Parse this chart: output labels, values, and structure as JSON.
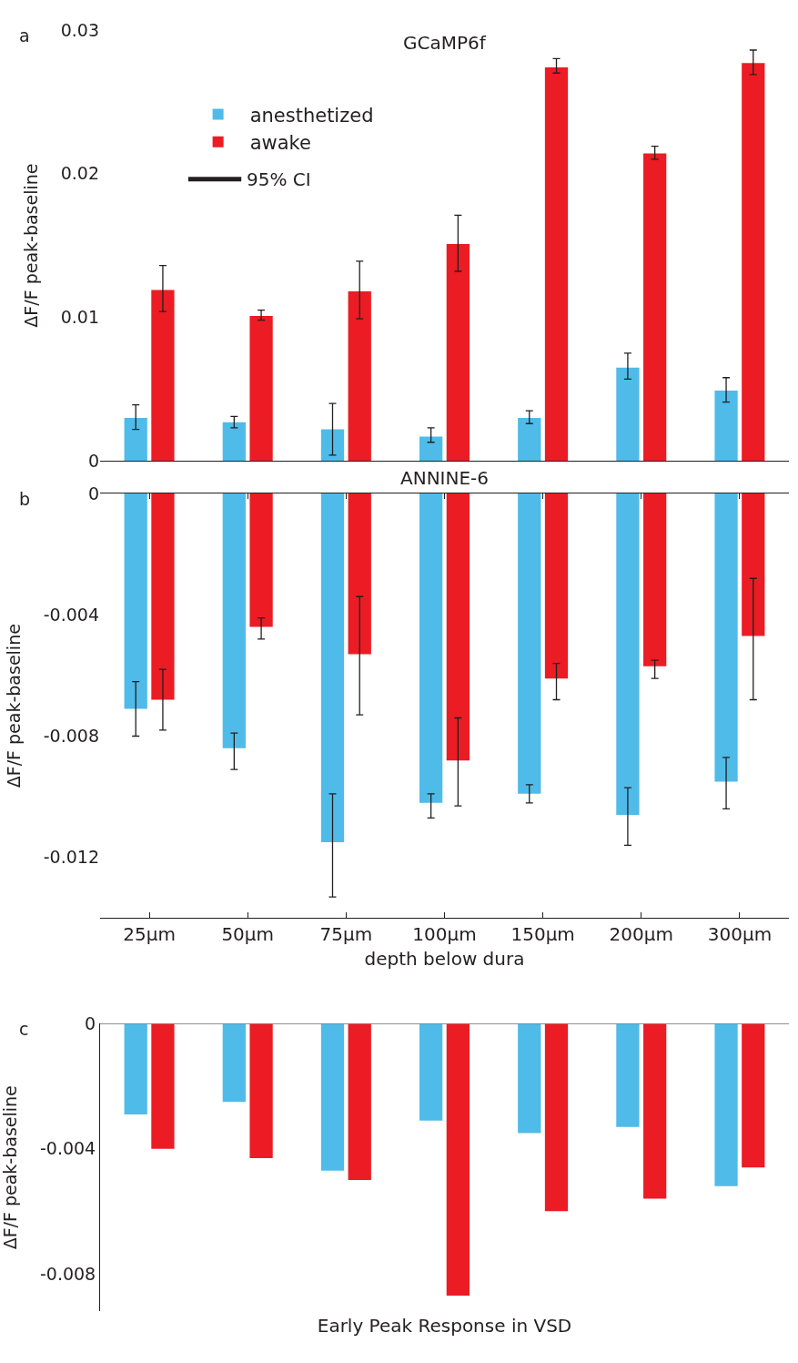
{
  "chart_data": [
    {
      "type": "bar",
      "title": "GCaMP6f",
      "ylabel": "ΔF/F peak-baseline",
      "categories": [
        null,
        null,
        null,
        null,
        null,
        null,
        null
      ],
      "ylim": [
        0,
        0.03
      ],
      "yticks": [
        0,
        0.01,
        0.02,
        0.03
      ],
      "tick_labels": "y",
      "legend": "top left",
      "annotations": [
        "a",
        "95% CI"
      ],
      "series": [
        {
          "name": "anesthetized",
          "color": "#4fbbe9",
          "values": [
            0.003,
            0.0027,
            0.0022,
            0.0017,
            0.003,
            0.0065,
            0.0049
          ],
          "errors": [
            [
              0.0022,
              0.0039
            ],
            [
              0.0023,
              0.0031
            ],
            [
              0.0004,
              0.004
            ],
            [
              0.0013,
              0.0023
            ],
            [
              0.0026,
              0.0035
            ],
            [
              0.0057,
              0.0075
            ],
            [
              0.0041,
              0.0058
            ]
          ]
        },
        {
          "name": "awake",
          "color": "#ec1c24",
          "values": [
            0.0119,
            0.0101,
            0.0118,
            0.0151,
            0.0274,
            0.0214,
            0.0277
          ],
          "errors": [
            [
              0.0104,
              0.0136
            ],
            [
              0.0098,
              0.0105
            ],
            [
              0.0099,
              0.0139
            ],
            [
              0.0132,
              0.0171
            ],
            [
              0.027,
              0.028
            ],
            [
              0.021,
              0.0219
            ],
            [
              0.0269,
              0.0286
            ]
          ]
        }
      ]
    },
    {
      "type": "bar",
      "title": "ANNINE-6",
      "xlabel": "depth below dura",
      "ylabel": "ΔF/F peak-baseline",
      "categories": [
        "25µm",
        "50µm",
        "75µm",
        "100µm",
        "150µm",
        "200µm",
        "300µm"
      ],
      "ylim": [
        -0.014,
        0
      ],
      "yticks": [
        0,
        -0.004,
        -0.008,
        -0.012
      ],
      "annotations": [
        "b"
      ],
      "series": [
        {
          "color": "#4fbbe9",
          "values": [
            -0.0071,
            -0.0084,
            -0.0115,
            -0.0102,
            -0.0099,
            -0.0106,
            -0.0095
          ],
          "errors": [
            [
              -0.008,
              -0.0062
            ],
            [
              -0.0091,
              -0.0079
            ],
            [
              -0.0133,
              -0.0099
            ],
            [
              -0.0107,
              -0.0099
            ],
            [
              -0.0102,
              -0.0096
            ],
            [
              -0.0116,
              -0.0097
            ],
            [
              -0.0104,
              -0.0087
            ]
          ]
        },
        {
          "color": "#ec1c24",
          "values": [
            -0.0068,
            -0.0044,
            -0.0053,
            -0.0088,
            -0.0061,
            -0.0057,
            -0.0047
          ],
          "errors": [
            [
              -0.0078,
              -0.0058
            ],
            [
              -0.0048,
              -0.0041
            ],
            [
              -0.0073,
              -0.0034
            ],
            [
              -0.0103,
              -0.0074
            ],
            [
              -0.0068,
              -0.0056
            ],
            [
              -0.0061,
              -0.0055
            ],
            [
              -0.0068,
              -0.0028
            ]
          ]
        }
      ]
    },
    {
      "type": "bar",
      "xlabel": "Early Peak Response in VSD",
      "ylabel": "ΔF/F peak-baseline",
      "categories": [
        null,
        null,
        null,
        null,
        null,
        null,
        null
      ],
      "ylim": [
        -0.0092,
        0
      ],
      "yticks": [
        0,
        -0.004,
        -0.008
      ],
      "tick_labels": "y",
      "annotations": [
        "c"
      ],
      "series": [
        {
          "color": "#4fbbe9",
          "values": [
            -0.0029,
            -0.0025,
            -0.0047,
            -0.0031,
            -0.0035,
            -0.0033,
            -0.0052
          ]
        },
        {
          "color": "#ec1c24",
          "values": [
            -0.004,
            -0.0043,
            -0.005,
            -0.0087,
            -0.006,
            -0.0056,
            -0.0046
          ]
        }
      ]
    }
  ]
}
